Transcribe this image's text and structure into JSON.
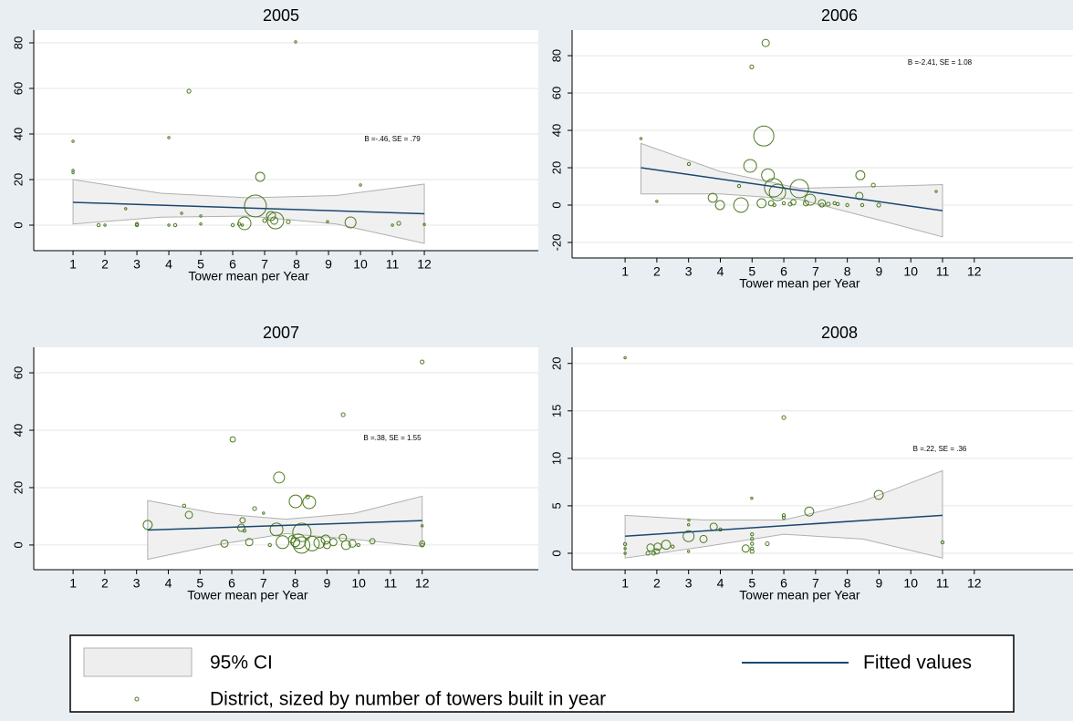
{
  "chart_data": [
    {
      "type": "scatter",
      "title": "2005",
      "xlabel": "Tower mean per Year",
      "annotation": "B =-.46, SE = .79",
      "xlim": [
        -0.23,
        15.57
      ],
      "ylim": [
        -11.2,
        85.6
      ],
      "xticks": [
        1,
        2,
        3,
        4,
        5,
        6,
        7,
        8,
        9,
        10,
        11,
        12
      ],
      "yticks": [
        0,
        20,
        40,
        60,
        80
      ],
      "grid": true,
      "points": {
        "x": [
          1,
          1,
          1,
          1.8,
          2,
          2.65,
          3,
          3,
          4,
          4.63,
          4,
          4.2,
          4.4,
          5,
          5,
          6,
          6.2,
          6.3,
          6.37,
          6.71,
          6.86,
          7,
          7.2,
          7.3,
          7.34,
          7.74,
          7.97,
          8.97,
          9.69,
          10,
          11,
          11.2,
          12
        ],
        "y": [
          36.8,
          24,
          23,
          0,
          0,
          7.2,
          0,
          0.5,
          38.4,
          58.8,
          0,
          0,
          5.2,
          4,
          0.5,
          0,
          0.5,
          0,
          0.8,
          8.4,
          21.2,
          2,
          4,
          2,
          2,
          1.5,
          80.4,
          1.5,
          1.2,
          17.6,
          0,
          0.8,
          0.3
        ],
        "size": [
          1,
          1,
          1,
          2,
          1,
          1,
          2,
          2,
          1,
          3,
          1,
          2,
          1,
          1,
          1,
          2,
          2,
          1,
          34,
          100,
          17,
          3,
          17,
          11,
          56,
          3,
          1,
          1,
          25,
          1,
          1,
          3,
          1
        ]
      },
      "fit": {
        "x": [
          1,
          12
        ],
        "values": [
          10,
          5
        ]
      },
      "ci": {
        "x": [
          1,
          3.75,
          6.5,
          9.25,
          12
        ],
        "lower": [
          0.5,
          3.5,
          4,
          0.5,
          -8
        ],
        "upper": [
          20,
          14,
          12,
          13,
          18
        ]
      }
    },
    {
      "type": "scatter",
      "title": "2006",
      "xlabel": "Tower mean per Year",
      "annotation": "B =-2.41, SE = 1.08",
      "xlim": [
        -0.67,
        15.11
      ],
      "ylim": [
        -28.3,
        93.7
      ],
      "xticks": [
        1,
        2,
        3,
        4,
        5,
        6,
        7,
        8,
        9,
        10,
        11,
        12
      ],
      "yticks": [
        -20,
        0,
        20,
        40,
        60,
        80
      ],
      "grid": true,
      "points": {
        "x": [
          1.5,
          2,
          3.01,
          3.76,
          3.99,
          4.59,
          4.65,
          4.99,
          4.94,
          5.3,
          5.43,
          5.37,
          5.5,
          5.68,
          5.8,
          5.6,
          5.7,
          6,
          6.2,
          6.49,
          6.3,
          6.7,
          6.83,
          7.2,
          7.2,
          7.4,
          7.6,
          7.7,
          8,
          8.41,
          8.38,
          8.47,
          8.82,
          8.99,
          10.8
        ],
        "y": [
          35.6,
          2,
          22,
          3.9,
          0,
          10.2,
          0,
          74,
          21,
          1,
          86.8,
          37,
          16,
          9.3,
          6.8,
          1,
          0,
          1,
          0.5,
          8.8,
          1.5,
          1,
          2.9,
          1,
          0,
          0.5,
          1,
          0.5,
          0,
          16,
          4.9,
          0,
          10.7,
          0,
          7.3
        ],
        "size": [
          1,
          1,
          2,
          17,
          17,
          2,
          44,
          3,
          34,
          17,
          11,
          84,
          34,
          70,
          56,
          6,
          2,
          2,
          3,
          70,
          6,
          6,
          25,
          11,
          3,
          3,
          2,
          2,
          2,
          17,
          11,
          2,
          3,
          3,
          1
        ]
      },
      "fit": {
        "x": [
          1.5,
          11
        ],
        "values": [
          20,
          -3
        ]
      },
      "ci": {
        "x": [
          1.5,
          4,
          6.5,
          9,
          11
        ],
        "lower": [
          6,
          6,
          3,
          -8,
          -17
        ],
        "upper": [
          33,
          18,
          9,
          10,
          11
        ]
      }
    },
    {
      "type": "scatter",
      "title": "2007",
      "xlabel": "Tower mean per Year",
      "annotation": "B =.38, SE = 1.55",
      "xlim": [
        -0.24,
        15.66
      ],
      "ylim": [
        -8.6,
        68.9
      ],
      "xticks": [
        1,
        2,
        3,
        4,
        5,
        6,
        7,
        8,
        9,
        10,
        11,
        12
      ],
      "yticks": [
        0,
        20,
        40,
        60
      ],
      "grid": true,
      "points": {
        "x": [
          3.35,
          4.5,
          4.65,
          5.77,
          6.03,
          6.34,
          6.3,
          6.4,
          6.55,
          6.72,
          7.2,
          7,
          7.49,
          7.41,
          7.6,
          8,
          7.9,
          8.01,
          8.44,
          8.39,
          8.21,
          8.1,
          8.2,
          8.53,
          8.76,
          8.96,
          9,
          9.2,
          9.51,
          9.5,
          9.6,
          9.8,
          9.99,
          10.43,
          12,
          12,
          12,
          12
        ],
        "y": [
          7,
          13.7,
          10.5,
          0.5,
          36.8,
          8.6,
          6,
          5,
          1,
          12.7,
          0,
          11.1,
          23.5,
          5.4,
          1,
          1,
          2,
          15.2,
          14.9,
          16.8,
          4.4,
          1.3,
          0,
          0.5,
          0.8,
          1.9,
          0,
          1,
          45.4,
          2.5,
          0,
          0.5,
          0,
          1.3,
          63.8,
          6.7,
          0.5,
          0
        ],
        "size": [
          17,
          2,
          11,
          11,
          6,
          6,
          11,
          2,
          11,
          3,
          2,
          1,
          25,
          34,
          34,
          17,
          11,
          34,
          34,
          3,
          70,
          44,
          56,
          44,
          25,
          17,
          11,
          11,
          3,
          11,
          17,
          11,
          2,
          6,
          3,
          1,
          6,
          3
        ]
      },
      "fit": {
        "x": [
          3.35,
          12
        ],
        "values": [
          5.2,
          8.5
        ]
      },
      "ci": {
        "x": [
          3.35,
          5.5,
          7.7,
          9.85,
          12
        ],
        "lower": [
          -5,
          0,
          4,
          2,
          -0.5
        ],
        "upper": [
          15.5,
          11,
          9,
          11,
          17
        ]
      }
    },
    {
      "type": "scatter",
      "title": "2008",
      "xlabel": "Tower mean per Year",
      "annotation": "B =.22, SE = .36",
      "xlim": [
        -0.67,
        15.11
      ],
      "ylim": [
        -1.73,
        21.7
      ],
      "xticks": [
        1,
        2,
        3,
        4,
        5,
        6,
        7,
        8,
        9,
        10,
        11,
        12
      ],
      "yticks": [
        0,
        5,
        10,
        15,
        20
      ],
      "grid": true,
      "points": {
        "x": [
          1,
          1,
          1,
          1,
          1.72,
          1.8,
          1.9,
          2,
          2.03,
          2.29,
          2.5,
          3.01,
          3,
          3,
          3,
          3.47,
          3.79,
          4,
          4.99,
          5,
          5,
          5,
          5,
          5,
          4.8,
          5.48,
          6,
          6,
          6,
          6.8,
          8.99,
          11
        ],
        "y": [
          20.6,
          0.96,
          0.5,
          0,
          0,
          0.6,
          0,
          0.2,
          0.7,
          0.9,
          0.7,
          3.5,
          3,
          1.8,
          0.2,
          1.5,
          2.8,
          2.5,
          5.8,
          2,
          1.5,
          1,
          0.5,
          0.2,
          0.5,
          1,
          14.3,
          4,
          3.75,
          4.4,
          6.15,
          1.15
        ],
        "size": [
          1,
          2,
          1,
          1,
          3,
          11,
          3,
          6,
          11,
          17,
          2,
          1,
          1,
          25,
          1,
          11,
          11,
          2,
          1,
          2,
          2,
          2,
          2,
          3,
          11,
          3,
          3,
          2,
          2,
          17,
          17,
          2
        ]
      },
      "fit": {
        "x": [
          1,
          11
        ],
        "values": [
          1.8,
          4.0
        ]
      },
      "ci": {
        "x": [
          1,
          3.5,
          6,
          8.5,
          11
        ],
        "lower": [
          -0.5,
          0.7,
          2,
          1.5,
          -0.5
        ],
        "upper": [
          4,
          3.5,
          3.5,
          5.5,
          8.7
        ]
      }
    }
  ],
  "legend": {
    "ci": "95% CI",
    "fit": "Fitted values",
    "points": "District, sized by number of towers built in year"
  },
  "style": {
    "point_color": "#4d7a21",
    "fit_color": "#1a476f",
    "ci_color": "#eeeeee"
  }
}
